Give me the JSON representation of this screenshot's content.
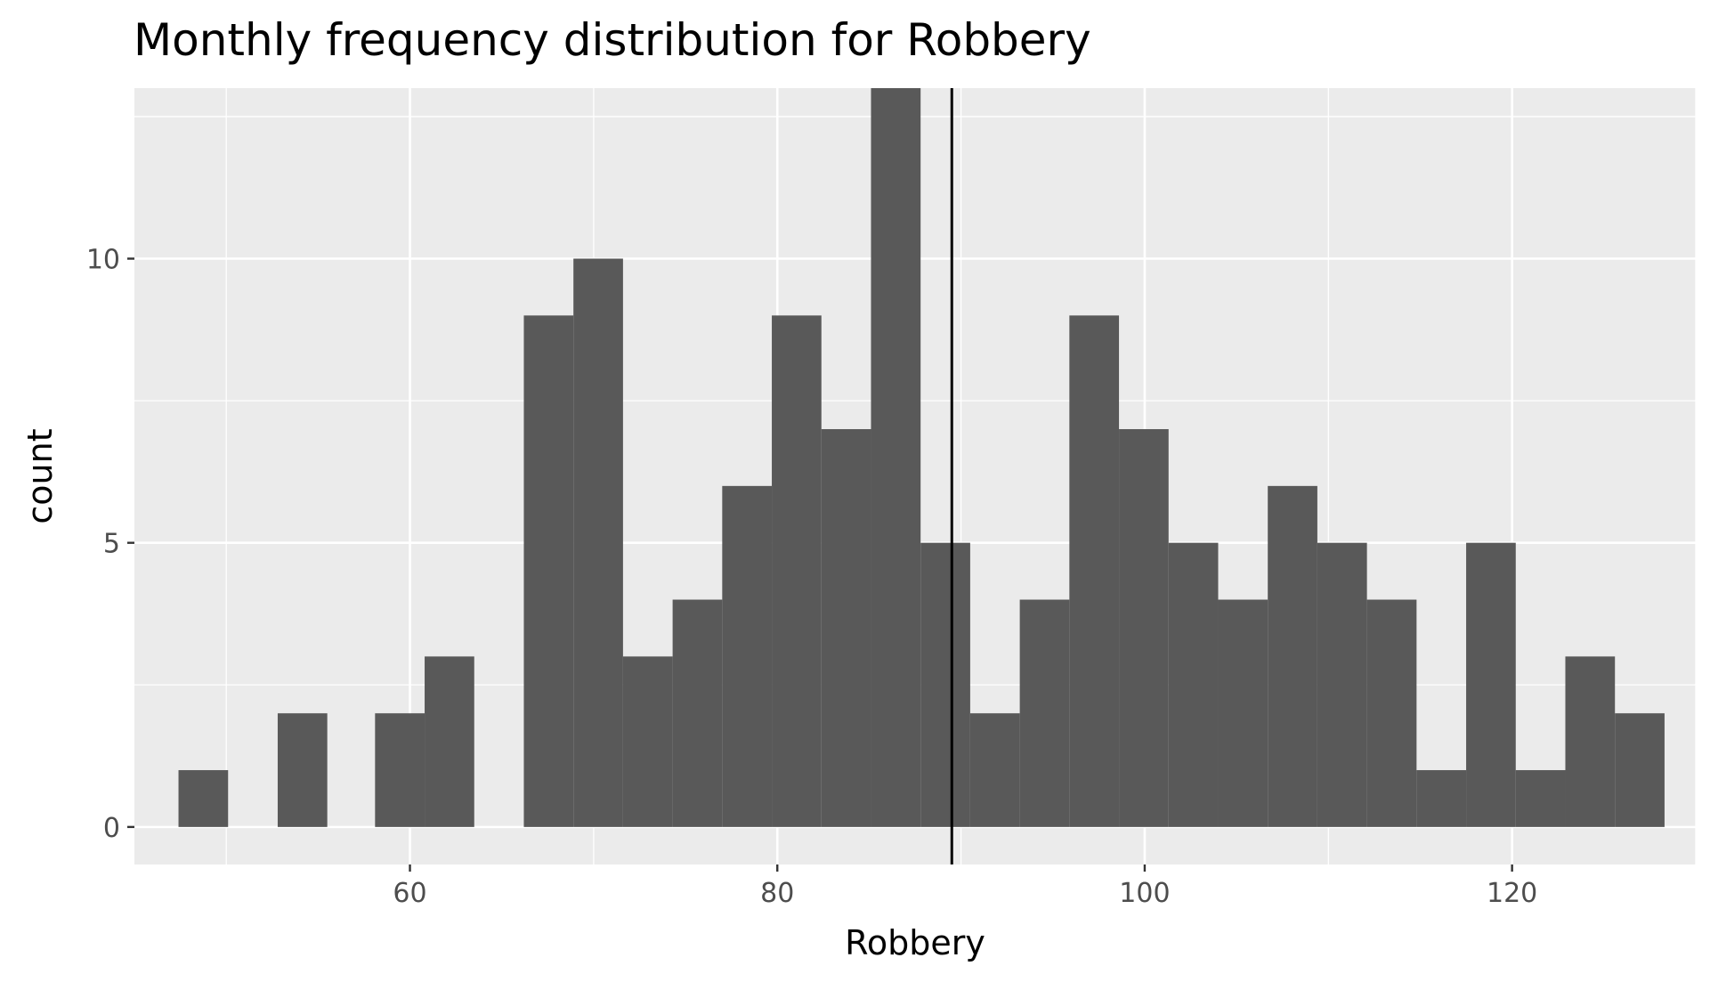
{
  "chart_data": {
    "type": "bar",
    "chart_kind": "histogram",
    "title": "Monthly frequency distribution for Robbery",
    "xlabel": "Robbery",
    "ylabel": "count",
    "xlim": [
      45,
      130
    ],
    "ylim": [
      -0.66,
      13.0
    ],
    "x_ticks": [
      60,
      80,
      100,
      120
    ],
    "y_ticks": [
      0,
      5,
      10
    ],
    "bin_width": 2.69,
    "bins": [
      {
        "x0": 47.4,
        "x1": 50.1,
        "count": 1
      },
      {
        "x0": 50.1,
        "x1": 52.8,
        "count": 0
      },
      {
        "x0": 52.8,
        "x1": 55.5,
        "count": 2
      },
      {
        "x0": 55.5,
        "x1": 58.1,
        "count": 0
      },
      {
        "x0": 58.1,
        "x1": 60.8,
        "count": 2
      },
      {
        "x0": 60.8,
        "x1": 63.5,
        "count": 3
      },
      {
        "x0": 63.5,
        "x1": 66.2,
        "count": 0
      },
      {
        "x0": 66.2,
        "x1": 68.9,
        "count": 9
      },
      {
        "x0": 68.9,
        "x1": 71.6,
        "count": 10
      },
      {
        "x0": 71.6,
        "x1": 74.3,
        "count": 3
      },
      {
        "x0": 74.3,
        "x1": 77.0,
        "count": 4
      },
      {
        "x0": 77.0,
        "x1": 79.7,
        "count": 6
      },
      {
        "x0": 79.7,
        "x1": 82.4,
        "count": 9
      },
      {
        "x0": 82.4,
        "x1": 85.1,
        "count": 7
      },
      {
        "x0": 85.1,
        "x1": 87.8,
        "count": 13
      },
      {
        "x0": 87.8,
        "x1": 90.5,
        "count": 5
      },
      {
        "x0": 90.5,
        "x1": 93.2,
        "count": 2
      },
      {
        "x0": 93.2,
        "x1": 95.9,
        "count": 4
      },
      {
        "x0": 95.9,
        "x1": 98.6,
        "count": 9
      },
      {
        "x0": 98.6,
        "x1": 101.3,
        "count": 7
      },
      {
        "x0": 101.3,
        "x1": 104.0,
        "count": 5
      },
      {
        "x0": 104.0,
        "x1": 106.7,
        "count": 4
      },
      {
        "x0": 106.7,
        "x1": 109.4,
        "count": 6
      },
      {
        "x0": 109.4,
        "x1": 112.1,
        "count": 5
      },
      {
        "x0": 112.1,
        "x1": 114.8,
        "count": 4
      },
      {
        "x0": 114.8,
        "x1": 117.5,
        "count": 1
      },
      {
        "x0": 117.5,
        "x1": 120.2,
        "count": 5
      },
      {
        "x0": 120.2,
        "x1": 122.9,
        "count": 1
      },
      {
        "x0": 122.9,
        "x1": 125.6,
        "count": 3
      },
      {
        "x0": 125.6,
        "x1": 128.3,
        "count": 2
      }
    ],
    "reference_line": {
      "x": 89.5
    },
    "grid": true,
    "legend": "none",
    "colors": {
      "bar_fill": "#595959",
      "panel_background": "#ebebeb",
      "grid_line": "#ffffff",
      "reference_line": "#000000",
      "tick_label": "#4d4d4d"
    }
  }
}
